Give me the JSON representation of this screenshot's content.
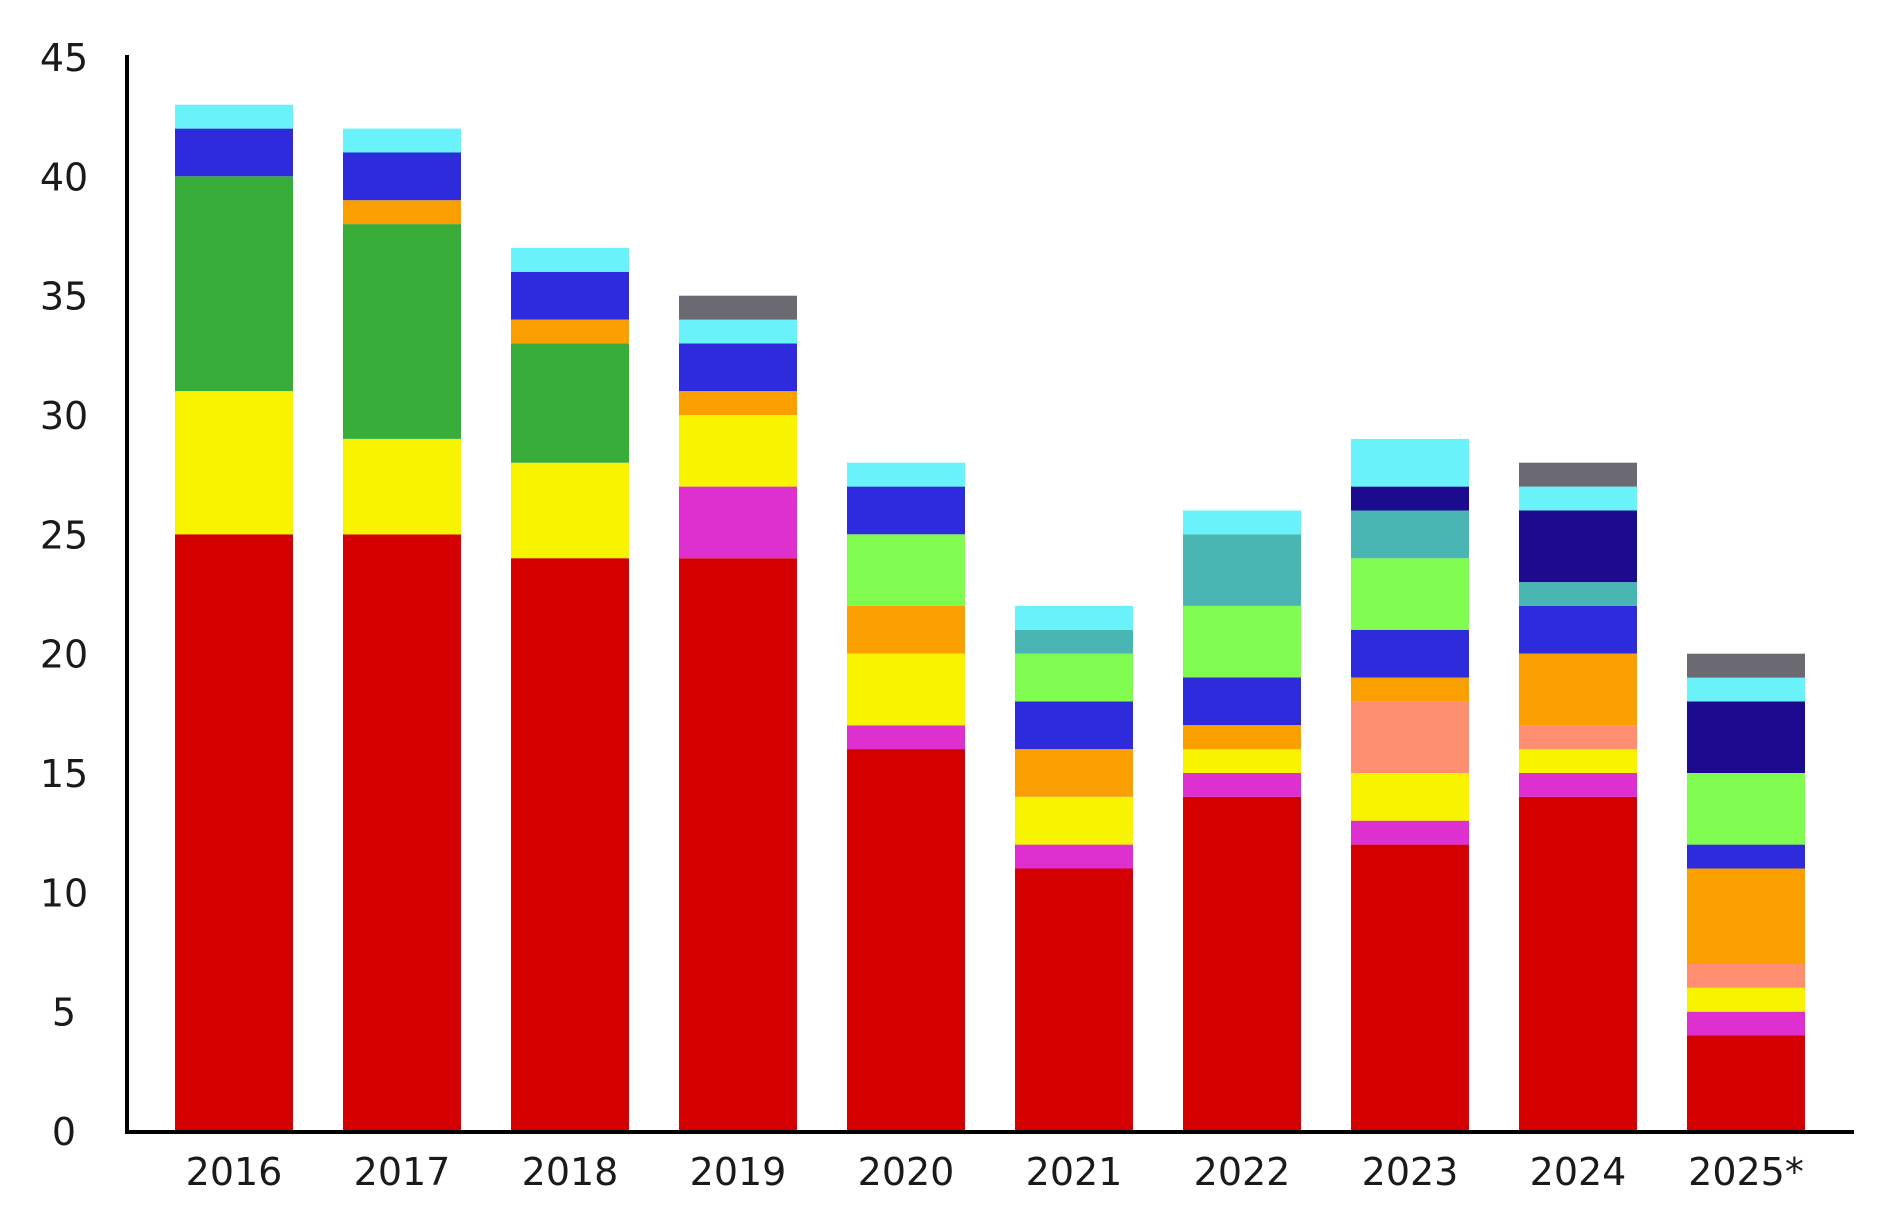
{
  "chart_data": {
    "type": "bar",
    "stacked": true,
    "categories": [
      "2016",
      "2017",
      "2018",
      "2019",
      "2020",
      "2021",
      "2022",
      "2023",
      "2024",
      "2025*"
    ],
    "ylim": [
      0,
      45
    ],
    "yticks": [
      0,
      5,
      10,
      15,
      20,
      25,
      30,
      35,
      40,
      45
    ],
    "grid": false,
    "legend": "none",
    "title": "",
    "xlabel": "",
    "ylabel": "",
    "series": [
      {
        "color": "#d40000",
        "values": [
          25,
          25,
          24,
          24,
          16,
          11,
          14,
          12,
          14,
          4
        ]
      },
      {
        "color": "#dd30cf",
        "values": [
          0,
          0,
          0,
          3,
          1,
          1,
          1,
          1,
          1,
          1
        ]
      },
      {
        "color": "#f8f400",
        "values": [
          6,
          4,
          4,
          3,
          3,
          2,
          1,
          2,
          1,
          1
        ]
      },
      {
        "color": "#ff8f70",
        "values": [
          0,
          0,
          0,
          0,
          0,
          0,
          0,
          3,
          1,
          1
        ]
      },
      {
        "color": "#f9a000",
        "values": [
          0,
          0,
          0,
          0,
          0,
          0,
          1,
          1,
          3,
          4
        ]
      },
      {
        "color": "#f9a000",
        "values": [
          0,
          0,
          0,
          0,
          2,
          2,
          0,
          0,
          0,
          0
        ]
      },
      {
        "color": "#2d2bdb",
        "values": [
          0,
          0,
          0,
          0,
          0,
          2,
          2,
          2,
          2,
          1
        ]
      },
      {
        "color": "#38ad3a",
        "values": [
          9,
          9,
          5,
          0,
          0,
          0,
          0,
          0,
          0,
          0
        ]
      },
      {
        "color": "#80fc50",
        "values": [
          0,
          0,
          0,
          0,
          3,
          2,
          3,
          3,
          0,
          3
        ]
      },
      {
        "color": "#4ab6b3",
        "values": [
          0,
          0,
          0,
          0,
          0,
          1,
          3,
          2,
          1,
          0
        ]
      },
      {
        "color": "#f9a000",
        "values": [
          0,
          1,
          1,
          1,
          0,
          0,
          0,
          0,
          0,
          0
        ]
      },
      {
        "color": "#2d2bdb",
        "values": [
          2,
          2,
          2,
          2,
          2,
          0,
          0,
          0,
          0,
          0
        ]
      },
      {
        "color": "#1c0a8f",
        "values": [
          0,
          0,
          0,
          0,
          0,
          0,
          0,
          1,
          3,
          3
        ]
      },
      {
        "color": "#69f2fa",
        "values": [
          1,
          1,
          1,
          1,
          1,
          1,
          1,
          2,
          1,
          1
        ]
      },
      {
        "color": "#6b6a72",
        "values": [
          0,
          0,
          0,
          1,
          0,
          0,
          0,
          0,
          1,
          1
        ]
      }
    ]
  }
}
